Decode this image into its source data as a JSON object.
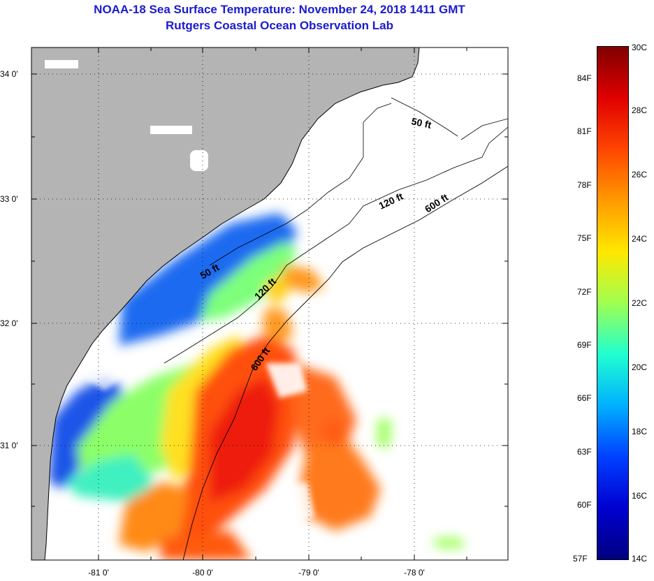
{
  "header": {
    "title": "NOAA-18 Sea Surface Temperature:  November 24, 2018 1411 GMT",
    "subtitle": "Rutgers Coastal Ocean Observation Lab"
  },
  "map": {
    "lat_labels": [
      "34 0'",
      "33 0'",
      "32 0'",
      "31 0'"
    ],
    "lon_labels": [
      "-81 0'",
      "-80 0'",
      "-79 0'",
      "-78 0'"
    ],
    "contour_labels": [
      "50 ft",
      "120 ft",
      "600 ft",
      "50 ft",
      "120 ft",
      "600 ft"
    ]
  },
  "colorbar": {
    "fahrenheit": [
      "84F",
      "81F",
      "78F",
      "75F",
      "72F",
      "69F",
      "66F",
      "63F",
      "60F",
      "57F"
    ],
    "celsius": [
      "30C",
      "28C",
      "26C",
      "24C",
      "22C",
      "20C",
      "18C",
      "16C",
      "14C"
    ],
    "colors": [
      "#800000",
      "#e00000",
      "#ff4500",
      "#ff9a00",
      "#ffe800",
      "#a0ff50",
      "#20ffd0",
      "#00b0ff",
      "#0040ff",
      "#0000d0",
      "#000080"
    ]
  }
}
